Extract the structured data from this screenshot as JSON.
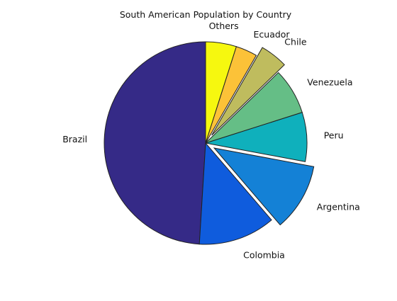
{
  "chart_data": {
    "type": "pie",
    "title": "South American Population by Country",
    "slices": [
      {
        "label": "Brazil",
        "value": 50.0,
        "color": "#352a87",
        "explode": false
      },
      {
        "label": "Colombia",
        "value": 12.5,
        "color": "#0f5cdd",
        "explode": false
      },
      {
        "label": "Argentina",
        "value": 11.0,
        "color": "#1481d6",
        "explode": true
      },
      {
        "label": "Peru",
        "value": 8.0,
        "color": "#0fb0bc",
        "explode": false
      },
      {
        "label": "Venezuela",
        "value": 7.5,
        "color": "#65be86",
        "explode": false
      },
      {
        "label": "Chile",
        "value": 4.5,
        "color": "#bfbc5e",
        "explode": true
      },
      {
        "label": "Ecuador",
        "value": 3.5,
        "color": "#fcc238",
        "explode": false
      },
      {
        "label": "Others",
        "value": 5.0,
        "color": "#f6f80f",
        "explode": false
      }
    ],
    "start": "12 o'clock",
    "direction": "counterclockwise",
    "legend": "none",
    "grid": false
  }
}
